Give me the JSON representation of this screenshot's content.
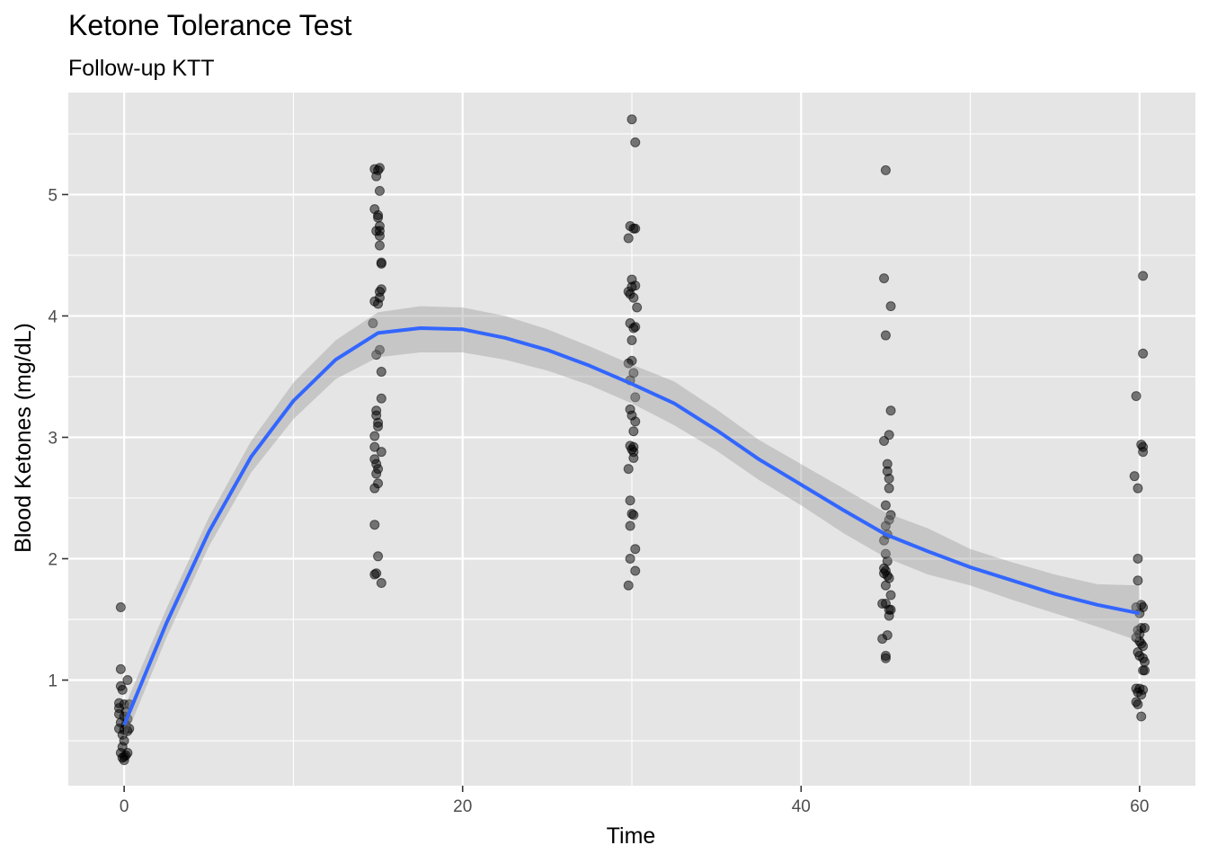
{
  "chart_data": {
    "type": "scatter",
    "title": "Ketone Tolerance Test",
    "subtitle": "Follow-up KTT",
    "xlabel": "Time",
    "ylabel": "Blood Ketones (mg/dL)",
    "xlim": [
      -3.3,
      63.3
    ],
    "ylim": [
      0.13,
      5.84
    ],
    "x_ticks": [
      0,
      20,
      40,
      60
    ],
    "y_ticks": [
      1,
      2,
      3,
      4,
      5
    ],
    "grid": true,
    "legend": "none",
    "colors": {
      "panel_background": "#e5e5e5",
      "grid": "#ffffff",
      "points": "#000000",
      "smooth_line": "#3366ff",
      "confidence_band": "#999999"
    },
    "points": [
      {
        "x": -0.2,
        "y": 1.6
      },
      {
        "x": -0.2,
        "y": 1.09
      },
      {
        "x": 0.2,
        "y": 1.0
      },
      {
        "x": -0.2,
        "y": 0.95
      },
      {
        "x": -0.1,
        "y": 0.92
      },
      {
        "x": -0.3,
        "y": 0.81
      },
      {
        "x": 0.0,
        "y": 0.8
      },
      {
        "x": 0.3,
        "y": 0.8
      },
      {
        "x": -0.3,
        "y": 0.77
      },
      {
        "x": 0.1,
        "y": 0.74
      },
      {
        "x": -0.3,
        "y": 0.72
      },
      {
        "x": 0.0,
        "y": 0.7
      },
      {
        "x": 0.2,
        "y": 0.68
      },
      {
        "x": -0.2,
        "y": 0.65
      },
      {
        "x": 0.1,
        "y": 0.63
      },
      {
        "x": -0.3,
        "y": 0.6
      },
      {
        "x": 0.3,
        "y": 0.6
      },
      {
        "x": 0.0,
        "y": 0.59
      },
      {
        "x": 0.2,
        "y": 0.58
      },
      {
        "x": -0.1,
        "y": 0.55
      },
      {
        "x": 0.0,
        "y": 0.5
      },
      {
        "x": -0.1,
        "y": 0.45
      },
      {
        "x": 0.2,
        "y": 0.4
      },
      {
        "x": -0.2,
        "y": 0.4
      },
      {
        "x": 0.1,
        "y": 0.38
      },
      {
        "x": 0.0,
        "y": 0.37
      },
      {
        "x": -0.1,
        "y": 0.36
      },
      {
        "x": 0.0,
        "y": 0.34
      },
      {
        "x": 14.8,
        "y": 5.21
      },
      {
        "x": 15.0,
        "y": 5.2
      },
      {
        "x": 15.1,
        "y": 5.22
      },
      {
        "x": 14.9,
        "y": 5.15
      },
      {
        "x": 15.1,
        "y": 5.03
      },
      {
        "x": 14.8,
        "y": 4.88
      },
      {
        "x": 15.0,
        "y": 4.83
      },
      {
        "x": 15.0,
        "y": 4.81
      },
      {
        "x": 15.1,
        "y": 4.74
      },
      {
        "x": 15.1,
        "y": 4.7
      },
      {
        "x": 14.9,
        "y": 4.7
      },
      {
        "x": 15.1,
        "y": 4.66
      },
      {
        "x": 15.1,
        "y": 4.58
      },
      {
        "x": 15.2,
        "y": 4.44
      },
      {
        "x": 15.2,
        "y": 4.43
      },
      {
        "x": 15.2,
        "y": 4.22
      },
      {
        "x": 15.1,
        "y": 4.2
      },
      {
        "x": 15.1,
        "y": 4.15
      },
      {
        "x": 14.8,
        "y": 4.12
      },
      {
        "x": 15.0,
        "y": 4.1
      },
      {
        "x": 14.7,
        "y": 3.94
      },
      {
        "x": 15.1,
        "y": 3.72
      },
      {
        "x": 14.9,
        "y": 3.68
      },
      {
        "x": 15.2,
        "y": 3.54
      },
      {
        "x": 15.2,
        "y": 3.32
      },
      {
        "x": 14.9,
        "y": 3.22
      },
      {
        "x": 14.9,
        "y": 3.18
      },
      {
        "x": 15.0,
        "y": 3.12
      },
      {
        "x": 15.0,
        "y": 3.09
      },
      {
        "x": 14.8,
        "y": 3.01
      },
      {
        "x": 14.8,
        "y": 2.92
      },
      {
        "x": 15.2,
        "y": 2.88
      },
      {
        "x": 14.8,
        "y": 2.82
      },
      {
        "x": 14.9,
        "y": 2.78
      },
      {
        "x": 15.0,
        "y": 2.74
      },
      {
        "x": 14.9,
        "y": 2.7
      },
      {
        "x": 15.0,
        "y": 2.62
      },
      {
        "x": 14.8,
        "y": 2.58
      },
      {
        "x": 14.8,
        "y": 2.28
      },
      {
        "x": 15.0,
        "y": 2.02
      },
      {
        "x": 14.9,
        "y": 1.88
      },
      {
        "x": 14.8,
        "y": 1.87
      },
      {
        "x": 15.2,
        "y": 1.8
      },
      {
        "x": 30.0,
        "y": 5.62
      },
      {
        "x": 30.2,
        "y": 5.43
      },
      {
        "x": 29.9,
        "y": 4.74
      },
      {
        "x": 30.2,
        "y": 4.72
      },
      {
        "x": 30.1,
        "y": 4.72
      },
      {
        "x": 29.8,
        "y": 4.64
      },
      {
        "x": 30.0,
        "y": 4.3
      },
      {
        "x": 30.2,
        "y": 4.25
      },
      {
        "x": 30.0,
        "y": 4.24
      },
      {
        "x": 29.8,
        "y": 4.2
      },
      {
        "x": 29.9,
        "y": 4.18
      },
      {
        "x": 30.1,
        "y": 4.15
      },
      {
        "x": 30.3,
        "y": 4.07
      },
      {
        "x": 29.9,
        "y": 3.94
      },
      {
        "x": 30.2,
        "y": 3.91
      },
      {
        "x": 30.1,
        "y": 3.9
      },
      {
        "x": 30.0,
        "y": 3.8
      },
      {
        "x": 30.0,
        "y": 3.63
      },
      {
        "x": 29.8,
        "y": 3.61
      },
      {
        "x": 30.1,
        "y": 3.53
      },
      {
        "x": 29.9,
        "y": 3.47
      },
      {
        "x": 30.2,
        "y": 3.33
      },
      {
        "x": 29.9,
        "y": 3.23
      },
      {
        "x": 30.0,
        "y": 3.18
      },
      {
        "x": 30.2,
        "y": 3.13
      },
      {
        "x": 30.1,
        "y": 3.05
      },
      {
        "x": 29.9,
        "y": 2.93
      },
      {
        "x": 30.1,
        "y": 2.92
      },
      {
        "x": 30.0,
        "y": 2.9
      },
      {
        "x": 30.1,
        "y": 2.88
      },
      {
        "x": 30.1,
        "y": 2.83
      },
      {
        "x": 29.8,
        "y": 2.74
      },
      {
        "x": 29.9,
        "y": 2.48
      },
      {
        "x": 30.0,
        "y": 2.37
      },
      {
        "x": 30.1,
        "y": 2.36
      },
      {
        "x": 29.9,
        "y": 2.27
      },
      {
        "x": 30.2,
        "y": 2.08
      },
      {
        "x": 29.9,
        "y": 2.0
      },
      {
        "x": 30.2,
        "y": 1.9
      },
      {
        "x": 29.8,
        "y": 1.78
      },
      {
        "x": 45.0,
        "y": 5.2
      },
      {
        "x": 44.9,
        "y": 4.31
      },
      {
        "x": 45.3,
        "y": 4.08
      },
      {
        "x": 45.0,
        "y": 3.84
      },
      {
        "x": 45.3,
        "y": 3.22
      },
      {
        "x": 45.2,
        "y": 3.02
      },
      {
        "x": 44.9,
        "y": 2.97
      },
      {
        "x": 45.1,
        "y": 2.78
      },
      {
        "x": 45.1,
        "y": 2.72
      },
      {
        "x": 45.2,
        "y": 2.66
      },
      {
        "x": 45.2,
        "y": 2.58
      },
      {
        "x": 45.0,
        "y": 2.44
      },
      {
        "x": 45.3,
        "y": 2.36
      },
      {
        "x": 45.2,
        "y": 2.32
      },
      {
        "x": 45.0,
        "y": 2.27
      },
      {
        "x": 45.1,
        "y": 2.2
      },
      {
        "x": 44.9,
        "y": 2.15
      },
      {
        "x": 45.0,
        "y": 2.04
      },
      {
        "x": 45.1,
        "y": 1.98
      },
      {
        "x": 44.9,
        "y": 1.92
      },
      {
        "x": 45.0,
        "y": 1.9
      },
      {
        "x": 44.9,
        "y": 1.88
      },
      {
        "x": 45.1,
        "y": 1.86
      },
      {
        "x": 45.2,
        "y": 1.84
      },
      {
        "x": 45.0,
        "y": 1.78
      },
      {
        "x": 45.3,
        "y": 1.7
      },
      {
        "x": 45.0,
        "y": 1.63
      },
      {
        "x": 44.8,
        "y": 1.63
      },
      {
        "x": 45.2,
        "y": 1.58
      },
      {
        "x": 45.3,
        "y": 1.58
      },
      {
        "x": 45.2,
        "y": 1.53
      },
      {
        "x": 45.1,
        "y": 1.37
      },
      {
        "x": 44.8,
        "y": 1.34
      },
      {
        "x": 45.0,
        "y": 1.2
      },
      {
        "x": 45.0,
        "y": 1.18
      },
      {
        "x": 60.2,
        "y": 4.33
      },
      {
        "x": 60.2,
        "y": 3.69
      },
      {
        "x": 59.8,
        "y": 3.34
      },
      {
        "x": 60.1,
        "y": 2.94
      },
      {
        "x": 60.2,
        "y": 2.92
      },
      {
        "x": 60.2,
        "y": 2.88
      },
      {
        "x": 59.7,
        "y": 2.68
      },
      {
        "x": 59.9,
        "y": 2.58
      },
      {
        "x": 59.9,
        "y": 2.0
      },
      {
        "x": 59.9,
        "y": 1.82
      },
      {
        "x": 60.1,
        "y": 1.62
      },
      {
        "x": 60.2,
        "y": 1.6
      },
      {
        "x": 59.8,
        "y": 1.6
      },
      {
        "x": 60.0,
        "y": 1.55
      },
      {
        "x": 60.1,
        "y": 1.43
      },
      {
        "x": 60.3,
        "y": 1.43
      },
      {
        "x": 59.9,
        "y": 1.41
      },
      {
        "x": 60.0,
        "y": 1.38
      },
      {
        "x": 59.8,
        "y": 1.35
      },
      {
        "x": 60.0,
        "y": 1.32
      },
      {
        "x": 60.1,
        "y": 1.3
      },
      {
        "x": 60.2,
        "y": 1.28
      },
      {
        "x": 59.9,
        "y": 1.23
      },
      {
        "x": 60.0,
        "y": 1.2
      },
      {
        "x": 60.2,
        "y": 1.18
      },
      {
        "x": 60.3,
        "y": 1.15
      },
      {
        "x": 60.2,
        "y": 1.08
      },
      {
        "x": 60.3,
        "y": 1.08
      },
      {
        "x": 59.8,
        "y": 0.93
      },
      {
        "x": 60.0,
        "y": 0.93
      },
      {
        "x": 60.2,
        "y": 0.92
      },
      {
        "x": 59.9,
        "y": 0.9
      },
      {
        "x": 60.1,
        "y": 0.88
      },
      {
        "x": 59.8,
        "y": 0.82
      },
      {
        "x": 59.9,
        "y": 0.8
      },
      {
        "x": 60.1,
        "y": 0.7
      }
    ],
    "smooth": {
      "method": "loess",
      "x": [
        0,
        2.5,
        5,
        7.5,
        10,
        12.5,
        15,
        17.5,
        20,
        22.5,
        25,
        27.5,
        30,
        32.5,
        35,
        37.5,
        40,
        42.5,
        45,
        47.5,
        50,
        52.5,
        55,
        57.5,
        60
      ],
      "y": [
        0.63,
        1.47,
        2.22,
        2.84,
        3.3,
        3.64,
        3.86,
        3.9,
        3.89,
        3.82,
        3.72,
        3.59,
        3.44,
        3.28,
        3.06,
        2.82,
        2.61,
        2.4,
        2.2,
        2.06,
        1.93,
        1.82,
        1.71,
        1.62,
        1.55
      ],
      "lower": [
        0.5,
        1.35,
        2.1,
        2.71,
        3.15,
        3.48,
        3.66,
        3.7,
        3.7,
        3.64,
        3.55,
        3.43,
        3.28,
        3.1,
        2.89,
        2.65,
        2.44,
        2.21,
        2.01,
        1.87,
        1.78,
        1.66,
        1.55,
        1.44,
        1.32
      ],
      "upper": [
        0.77,
        1.59,
        2.34,
        2.97,
        3.45,
        3.8,
        4.03,
        4.08,
        4.07,
        4.0,
        3.89,
        3.75,
        3.6,
        3.46,
        3.23,
        2.98,
        2.78,
        2.58,
        2.38,
        2.25,
        2.08,
        1.97,
        1.87,
        1.79,
        1.78
      ]
    }
  }
}
